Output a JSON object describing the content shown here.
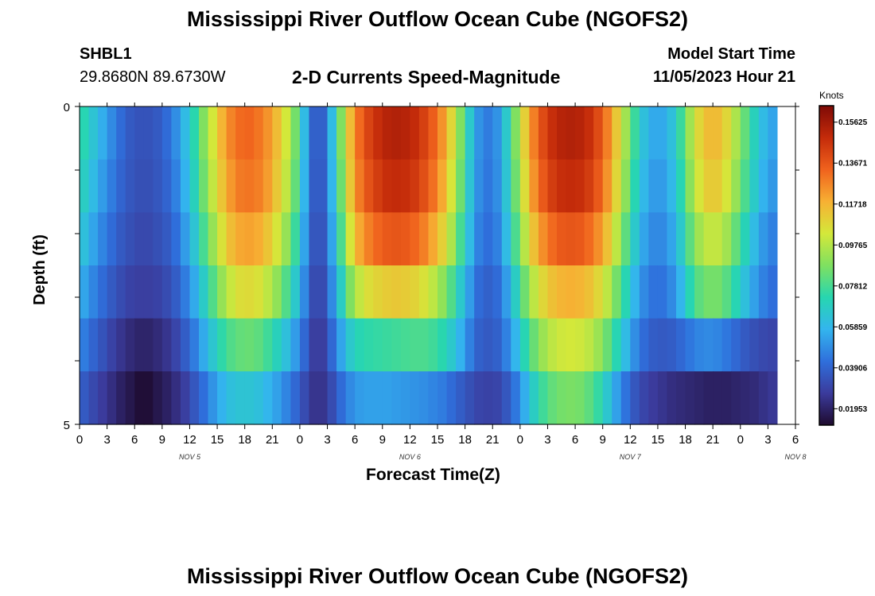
{
  "page": {
    "title_top": "Mississippi River Outflow Ocean Cube (NGOFS2)",
    "station_id": "SHBL1",
    "station_coords": "29.8680N  89.6730W",
    "subtitle": "2-D Currents Speed-Magnitude",
    "model_start_label": "Model Start Time",
    "model_start_value": "11/05/2023 Hour 21",
    "title_bottom": "Mississippi River Outflow Ocean Cube (NGOFS2)"
  },
  "chart_data": {
    "type": "heatmap",
    "title": "2-D Currents Speed-Magnitude",
    "xlabel": "Forecast Time(Z)",
    "ylabel": "Depth (ft)",
    "colorbar_label": "Knots",
    "y_ticks": [
      "0",
      "5"
    ],
    "ylim": [
      0,
      5
    ],
    "x_ticks": [
      "0",
      "3",
      "6",
      "9",
      "12",
      "15",
      "18",
      "21",
      "0",
      "3",
      "6",
      "9",
      "12",
      "15",
      "18",
      "21",
      "0",
      "3",
      "6",
      "9",
      "12",
      "15",
      "18",
      "21",
      "0",
      "3",
      "6"
    ],
    "date_labels": [
      "NOV 5",
      "NOV 6",
      "NOV 7",
      "NOV 8"
    ],
    "colorbar_ticks": [
      "0.15625",
      "0.13671",
      "0.11718",
      "0.09765",
      "0.07812",
      "0.05859",
      "0.03906",
      "0.01953"
    ],
    "colorbar_range": [
      0.0117,
      0.1641
    ],
    "colormap": [
      "#1e0a2e",
      "#3b3b9c",
      "#2f6fdc",
      "#33b5ee",
      "#27d6b0",
      "#7fe060",
      "#d4e83a",
      "#f7b033",
      "#f0621d",
      "#c42b0a",
      "#7e0a06"
    ],
    "time_step_hours": 1,
    "start_time": "11/05 Hour 0",
    "depth_layers": 6,
    "speed_knots": [
      [
        0.072,
        0.064,
        0.056,
        0.048,
        0.041,
        0.036,
        0.034,
        0.034,
        0.036,
        0.041,
        0.049,
        0.06,
        0.073,
        0.088,
        0.103,
        0.117,
        0.127,
        0.132,
        0.133,
        0.13,
        0.124,
        0.115,
        0.103,
        0.086,
        0.06,
        0.038,
        0.038,
        0.06,
        0.088,
        0.115,
        0.132,
        0.142,
        0.148,
        0.152,
        0.153,
        0.152,
        0.149,
        0.143,
        0.135,
        0.124,
        0.108,
        0.088,
        0.066,
        0.05,
        0.045,
        0.05,
        0.066,
        0.088,
        0.11,
        0.128,
        0.14,
        0.148,
        0.152,
        0.153,
        0.152,
        0.148,
        0.14,
        0.128,
        0.112,
        0.094,
        0.076,
        0.062,
        0.055,
        0.055,
        0.062,
        0.076,
        0.094,
        0.108,
        0.115,
        0.115,
        0.108,
        0.096,
        0.083,
        0.07,
        0.06,
        0.054
      ],
      [
        0.068,
        0.06,
        0.052,
        0.045,
        0.039,
        0.035,
        0.033,
        0.033,
        0.035,
        0.039,
        0.046,
        0.057,
        0.07,
        0.085,
        0.1,
        0.113,
        0.123,
        0.129,
        0.13,
        0.128,
        0.122,
        0.112,
        0.1,
        0.083,
        0.058,
        0.037,
        0.037,
        0.058,
        0.085,
        0.112,
        0.129,
        0.138,
        0.144,
        0.148,
        0.149,
        0.148,
        0.145,
        0.139,
        0.131,
        0.12,
        0.104,
        0.085,
        0.064,
        0.049,
        0.044,
        0.049,
        0.064,
        0.085,
        0.106,
        0.124,
        0.136,
        0.144,
        0.148,
        0.149,
        0.148,
        0.144,
        0.136,
        0.124,
        0.108,
        0.09,
        0.072,
        0.059,
        0.052,
        0.052,
        0.059,
        0.072,
        0.09,
        0.104,
        0.111,
        0.111,
        0.104,
        0.092,
        0.079,
        0.067,
        0.057,
        0.051
      ],
      [
        0.062,
        0.054,
        0.047,
        0.041,
        0.036,
        0.033,
        0.031,
        0.031,
        0.033,
        0.036,
        0.042,
        0.052,
        0.064,
        0.078,
        0.092,
        0.105,
        0.115,
        0.12,
        0.121,
        0.119,
        0.113,
        0.104,
        0.092,
        0.076,
        0.054,
        0.035,
        0.035,
        0.054,
        0.079,
        0.104,
        0.12,
        0.128,
        0.133,
        0.136,
        0.137,
        0.136,
        0.133,
        0.128,
        0.12,
        0.11,
        0.096,
        0.078,
        0.06,
        0.046,
        0.042,
        0.046,
        0.06,
        0.079,
        0.098,
        0.114,
        0.125,
        0.132,
        0.136,
        0.137,
        0.136,
        0.132,
        0.125,
        0.114,
        0.099,
        0.082,
        0.066,
        0.054,
        0.048,
        0.048,
        0.054,
        0.066,
        0.082,
        0.094,
        0.1,
        0.1,
        0.094,
        0.083,
        0.071,
        0.06,
        0.051,
        0.046
      ],
      [
        0.054,
        0.047,
        0.041,
        0.036,
        0.032,
        0.029,
        0.028,
        0.028,
        0.029,
        0.032,
        0.037,
        0.045,
        0.055,
        0.067,
        0.08,
        0.092,
        0.101,
        0.106,
        0.107,
        0.105,
        0.099,
        0.091,
        0.08,
        0.066,
        0.048,
        0.032,
        0.032,
        0.048,
        0.068,
        0.088,
        0.1,
        0.106,
        0.109,
        0.111,
        0.112,
        0.111,
        0.109,
        0.105,
        0.099,
        0.091,
        0.08,
        0.066,
        0.052,
        0.041,
        0.038,
        0.041,
        0.052,
        0.068,
        0.085,
        0.099,
        0.108,
        0.114,
        0.117,
        0.118,
        0.117,
        0.114,
        0.108,
        0.099,
        0.086,
        0.072,
        0.058,
        0.048,
        0.043,
        0.043,
        0.048,
        0.058,
        0.072,
        0.082,
        0.086,
        0.086,
        0.081,
        0.072,
        0.062,
        0.053,
        0.046,
        0.042
      ],
      [
        0.045,
        0.039,
        0.034,
        0.029,
        0.025,
        0.022,
        0.02,
        0.02,
        0.022,
        0.025,
        0.03,
        0.037,
        0.045,
        0.055,
        0.065,
        0.074,
        0.08,
        0.083,
        0.084,
        0.082,
        0.077,
        0.07,
        0.062,
        0.052,
        0.04,
        0.028,
        0.028,
        0.04,
        0.054,
        0.066,
        0.072,
        0.074,
        0.075,
        0.076,
        0.077,
        0.078,
        0.079,
        0.079,
        0.077,
        0.073,
        0.066,
        0.057,
        0.046,
        0.038,
        0.036,
        0.038,
        0.046,
        0.058,
        0.072,
        0.084,
        0.093,
        0.099,
        0.102,
        0.103,
        0.102,
        0.099,
        0.093,
        0.084,
        0.072,
        0.06,
        0.049,
        0.041,
        0.037,
        0.036,
        0.037,
        0.04,
        0.044,
        0.047,
        0.048,
        0.047,
        0.044,
        0.04,
        0.036,
        0.033,
        0.031,
        0.03
      ],
      [
        0.036,
        0.031,
        0.027,
        0.023,
        0.019,
        0.016,
        0.013,
        0.013,
        0.016,
        0.019,
        0.023,
        0.028,
        0.035,
        0.042,
        0.05,
        0.057,
        0.062,
        0.064,
        0.064,
        0.062,
        0.058,
        0.053,
        0.047,
        0.04,
        0.032,
        0.025,
        0.025,
        0.032,
        0.041,
        0.048,
        0.052,
        0.053,
        0.053,
        0.053,
        0.052,
        0.051,
        0.05,
        0.049,
        0.047,
        0.045,
        0.041,
        0.037,
        0.033,
        0.03,
        0.029,
        0.03,
        0.035,
        0.044,
        0.056,
        0.068,
        0.077,
        0.083,
        0.086,
        0.087,
        0.086,
        0.082,
        0.075,
        0.065,
        0.053,
        0.043,
        0.035,
        0.03,
        0.027,
        0.025,
        0.023,
        0.022,
        0.021,
        0.02,
        0.019,
        0.019,
        0.019,
        0.02,
        0.021,
        0.022,
        0.024,
        0.026
      ]
    ]
  }
}
